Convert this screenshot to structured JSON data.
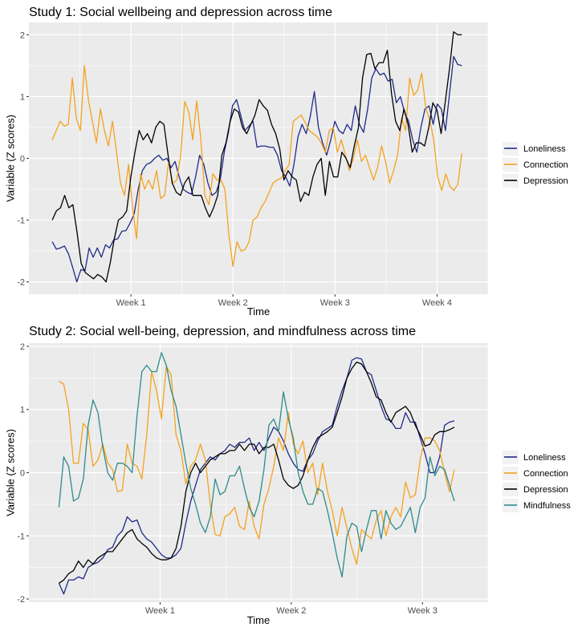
{
  "colors": {
    "loneliness": "#1f2a8a",
    "connection": "#f5a21d",
    "depression": "#000000",
    "mindfulness": "#2e8b8b",
    "panel_bg": "#ebebeb",
    "grid": "#ffffff"
  },
  "chart_data": [
    {
      "type": "line",
      "title": "Study 1: Social wellbeing and depression across time",
      "xlabel": "Time",
      "ylabel": "Variable (Z scores)",
      "x_ticks": [
        "Week 1",
        "Week 2",
        "Week 3",
        "Week 4"
      ],
      "x_tick_values": [
        7,
        14,
        21,
        28
      ],
      "xlim": [
        0,
        31.5
      ],
      "ylim": [
        -2.2,
        2.2
      ],
      "y_ticks": [
        -2,
        -1,
        0,
        1,
        2
      ],
      "y_tick_labels": [
        "-2",
        "-1",
        "0",
        "1",
        "2"
      ],
      "grid": true,
      "legend": "right",
      "series": [
        {
          "name": "Loneliness",
          "color_key": "loneliness",
          "values": [
            -1.35,
            -1.47,
            -1.45,
            -1.42,
            -1.55,
            -1.77,
            -2.0,
            -1.8,
            -1.82,
            -1.45,
            -1.6,
            -1.45,
            -1.6,
            -1.4,
            -1.45,
            -1.32,
            -1.3,
            -1.18,
            -1.17,
            -1.05,
            -0.9,
            -0.5,
            -0.2,
            -0.1,
            -0.07,
            0.0,
            0.05,
            -0.03,
            0.0,
            -0.15,
            -0.05,
            -0.3,
            -0.5,
            -0.55,
            -0.58,
            -0.3,
            0.05,
            -0.1,
            -0.4,
            -0.6,
            -0.55,
            -0.35,
            0.1,
            0.42,
            0.85,
            0.95,
            0.7,
            0.45,
            0.52,
            0.6,
            0.18,
            0.2,
            0.2,
            0.18,
            0.18,
            0.05,
            -0.2,
            -0.3,
            -0.45,
            -0.1,
            0.35,
            0.55,
            0.4,
            0.68,
            1.08,
            0.5,
            0.25,
            0.05,
            0.3,
            0.6,
            0.45,
            0.4,
            0.55,
            0.45,
            0.85,
            0.55,
            0.42,
            0.8,
            1.3,
            1.45,
            1.35,
            1.38,
            1.25,
            1.28,
            0.9,
            1.0,
            0.75,
            0.6,
            0.3,
            0.1,
            0.5,
            0.8,
            0.85,
            0.55,
            0.88,
            0.8,
            0.45,
            1.05,
            1.65,
            1.52,
            1.5
          ]
        },
        {
          "name": "Connection",
          "color_key": "connection",
          "values": [
            0.3,
            0.45,
            0.6,
            0.52,
            0.55,
            1.3,
            0.65,
            0.45,
            1.5,
            0.95,
            0.6,
            0.25,
            0.8,
            0.45,
            0.2,
            0.6,
            0.1,
            -0.4,
            -0.6,
            -0.1,
            -0.8,
            -1.3,
            -0.25,
            -0.5,
            -0.35,
            -0.5,
            -0.2,
            -0.65,
            -0.6,
            -0.05,
            -0.4,
            -0.35,
            0.05,
            0.92,
            0.75,
            0.3,
            0.93,
            0.32,
            -0.6,
            -0.75,
            -0.25,
            -0.35,
            -0.35,
            -0.5,
            -1.25,
            -1.75,
            -1.35,
            -1.5,
            -1.48,
            -1.35,
            -1.0,
            -0.95,
            -0.8,
            -0.7,
            -0.55,
            -0.4,
            -0.35,
            -0.32,
            -0.2,
            -0.1,
            0.6,
            0.65,
            0.7,
            0.58,
            0.45,
            0.4,
            0.35,
            0.25,
            0.1,
            0.45,
            0.5,
            0.1,
            0.3,
            0.05,
            -0.2,
            0.0,
            0.3,
            -0.05,
            0.05,
            -0.15,
            -0.35,
            -0.15,
            0.2,
            -0.05,
            -0.4,
            -0.2,
            0.05,
            0.65,
            0.45,
            1.3,
            1.02,
            1.1,
            1.38,
            0.82,
            0.62,
            0.3,
            -0.3,
            -0.52,
            -0.25,
            -0.45,
            -0.52,
            -0.42,
            0.08
          ]
        },
        {
          "name": "Depression",
          "color_key": "depression",
          "values": [
            -1.0,
            -0.85,
            -0.8,
            -0.6,
            -0.8,
            -0.75,
            -1.2,
            -1.7,
            -1.85,
            -1.9,
            -1.95,
            -1.88,
            -1.92,
            -2.0,
            -1.7,
            -1.3,
            -1.0,
            -0.95,
            -0.85,
            -0.3,
            0.1,
            0.45,
            0.3,
            0.4,
            0.25,
            0.5,
            0.6,
            0.55,
            0.05,
            -0.4,
            -0.55,
            -0.6,
            -0.4,
            -0.3,
            -0.6,
            -0.6,
            -0.6,
            -0.8,
            -0.95,
            -0.8,
            -0.6,
            0.05,
            0.25,
            0.6,
            0.8,
            0.75,
            0.5,
            0.4,
            0.55,
            0.7,
            0.95,
            0.85,
            0.78,
            0.55,
            0.4,
            0.15,
            -0.35,
            -0.2,
            -0.3,
            -0.35,
            -0.7,
            -0.55,
            -0.6,
            -0.3,
            -0.1,
            0.0,
            -0.6,
            -0.05,
            -0.3,
            -0.3,
            0.1,
            0.0,
            -0.15,
            0.2,
            0.5,
            1.3,
            1.68,
            1.7,
            1.45,
            1.55,
            1.55,
            1.75,
            1.05,
            0.6,
            0.45,
            0.8,
            0.55,
            0.1,
            0.25,
            0.25,
            0.2,
            0.5,
            0.9,
            0.78,
            0.4,
            0.92,
            1.45,
            2.05,
            2.0,
            2.0
          ]
        }
      ]
    },
    {
      "type": "line",
      "title": "Study 2: Social well-being, depression, and mindfulness across time",
      "xlabel": "Time",
      "ylabel": "Variable (Z scores)",
      "x_ticks": [
        "Week 1",
        "Week 2",
        "Week 3"
      ],
      "x_tick_values": [
        7,
        14,
        21
      ],
      "xlim": [
        0,
        24.5
      ],
      "ylim": [
        -2.05,
        2.05
      ],
      "y_ticks": [
        -2,
        -1,
        0,
        1,
        2
      ],
      "y_tick_labels": [
        "-2",
        "-1",
        "0",
        "1",
        "2"
      ],
      "grid": true,
      "legend": "right",
      "series": [
        {
          "name": "Loneliness",
          "color_key": "loneliness",
          "values": [
            -1.75,
            -1.92,
            -1.7,
            -1.7,
            -1.65,
            -1.68,
            -1.5,
            -1.45,
            -1.42,
            -1.35,
            -1.22,
            -1.18,
            -1.0,
            -0.92,
            -0.7,
            -0.78,
            -0.75,
            -0.95,
            -1.05,
            -1.1,
            -1.2,
            -1.3,
            -1.35,
            -1.35,
            -1.3,
            -1.2,
            -0.8,
            -0.45,
            -0.2,
            0.05,
            0.15,
            0.25,
            0.2,
            0.3,
            0.35,
            0.45,
            0.4,
            0.48,
            0.48,
            0.55,
            0.35,
            0.48,
            0.35,
            0.55,
            0.72,
            0.65,
            0.5,
            0.3,
            0.15,
            0.05,
            0.02,
            0.2,
            0.3,
            0.5,
            0.65,
            0.7,
            0.75,
            1.05,
            1.3,
            1.5,
            1.78,
            1.82,
            1.8,
            1.6,
            1.55,
            1.3,
            1.05,
            0.85,
            0.82,
            0.7,
            0.7,
            0.95,
            0.8,
            0.8,
            0.55,
            0.3,
            0.0,
            0.0,
            0.25,
            0.75,
            0.8,
            0.82
          ]
        },
        {
          "name": "Connection",
          "color_key": "connection",
          "values": [
            1.45,
            1.4,
            1.0,
            0.15,
            0.15,
            0.78,
            0.68,
            0.1,
            0.2,
            0.45,
            0.15,
            0.05,
            -0.3,
            -0.28,
            0.45,
            0.15,
            0.1,
            -0.1,
            0.6,
            1.6,
            1.3,
            0.85,
            1.68,
            1.55,
            0.6,
            0.35,
            -0.18,
            0.1,
            0.2,
            0.45,
            0.2,
            -0.5,
            -0.98,
            -1.0,
            -0.7,
            -0.65,
            -0.55,
            -0.85,
            -0.9,
            -0.45,
            -0.85,
            -1.05,
            -0.5,
            -0.25,
            0.1,
            0.55,
            0.35,
            0.95,
            0.45,
            0.3,
            0.5,
            0.0,
            0.15,
            -0.35,
            0.15,
            -0.3,
            -0.6,
            -1.0,
            -0.55,
            -0.88,
            -1.2,
            -1.45,
            -0.9,
            -0.98,
            -1.05,
            -0.75,
            -0.6,
            -1.0,
            -0.7,
            -0.55,
            -0.7,
            -0.15,
            -0.4,
            -0.35,
            0.2,
            0.55,
            0.55,
            0.5,
            0.35,
            0.0,
            -0.3,
            0.05
          ]
        },
        {
          "name": "Depression",
          "color_key": "depression",
          "values": [
            -1.75,
            -1.7,
            -1.6,
            -1.55,
            -1.4,
            -1.5,
            -1.38,
            -1.45,
            -1.35,
            -1.3,
            -1.25,
            -1.25,
            -1.15,
            -1.05,
            -0.95,
            -0.9,
            -1.05,
            -1.12,
            -1.18,
            -1.28,
            -1.35,
            -1.38,
            -1.38,
            -1.35,
            -1.2,
            -0.85,
            -0.3,
            0.0,
            0.15,
            0.0,
            0.1,
            0.2,
            0.25,
            0.3,
            0.3,
            0.35,
            0.35,
            0.45,
            0.35,
            0.45,
            0.45,
            0.3,
            0.4,
            0.4,
            0.45,
            0.2,
            -0.1,
            -0.2,
            -0.25,
            -0.2,
            -0.05,
            0.2,
            0.4,
            0.55,
            0.6,
            0.65,
            0.72,
            0.95,
            1.2,
            1.5,
            1.65,
            1.75,
            1.72,
            1.6,
            1.42,
            1.2,
            1.15,
            0.95,
            0.8,
            0.95,
            1.0,
            1.05,
            0.95,
            0.75,
            0.6,
            0.42,
            0.45,
            0.6,
            0.65,
            0.65,
            0.68,
            0.72
          ]
        },
        {
          "name": "Mindfulness",
          "color_key": "mindfulness",
          "values": [
            -0.55,
            0.25,
            0.1,
            -0.45,
            -0.4,
            -0.1,
            0.75,
            1.15,
            0.95,
            0.4,
            0.0,
            -0.12,
            0.15,
            0.15,
            0.1,
            0.0,
            0.9,
            1.6,
            1.7,
            1.6,
            1.6,
            1.9,
            1.7,
            1.3,
            1.05,
            0.6,
            0.15,
            -0.25,
            -0.5,
            -0.8,
            -0.95,
            -0.7,
            -0.1,
            -0.35,
            -0.3,
            -0.05,
            -0.05,
            0.1,
            -0.25,
            -0.55,
            -0.7,
            -0.45,
            0.05,
            0.75,
            0.85,
            0.65,
            1.28,
            0.85,
            0.55,
            0.0,
            -0.3,
            -0.5,
            -0.5,
            -0.25,
            -0.3,
            -0.6,
            -0.95,
            -1.35,
            -1.65,
            -1.0,
            -0.8,
            -0.85,
            -1.25,
            -0.9,
            -0.6,
            -0.6,
            -1.05,
            -0.6,
            -0.8,
            -0.9,
            -0.85,
            -0.7,
            -0.55,
            -0.95,
            -0.55,
            -0.4,
            0.25,
            -0.05,
            0.1,
            0.05,
            -0.2,
            -0.45
          ]
        }
      ]
    }
  ]
}
